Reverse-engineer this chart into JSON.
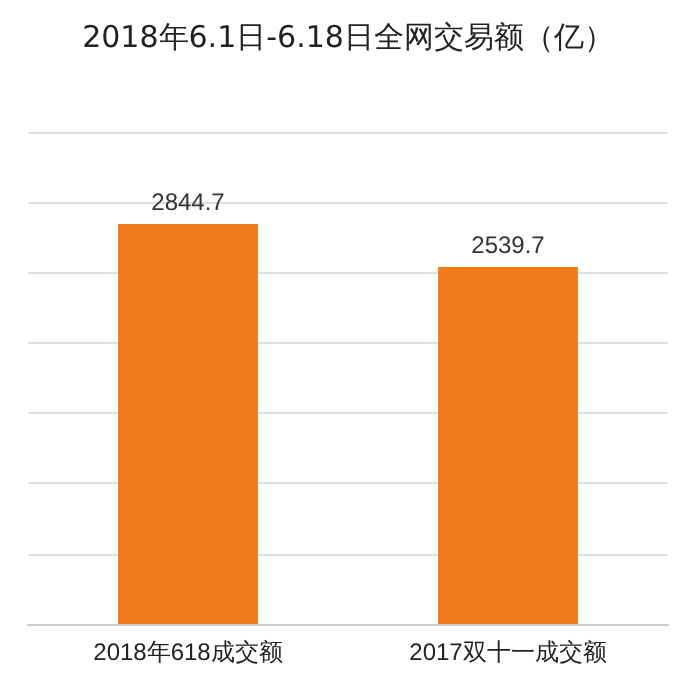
{
  "chart_data": {
    "type": "bar",
    "title": "2018年6.1日-6.18日全网交易额（亿）",
    "categories": [
      "2018年618成交额",
      "2017双十一成交额"
    ],
    "values": [
      2844.7,
      2539.7
    ],
    "color": "#f07c1c",
    "ylim": [
      0,
      3500
    ],
    "yticks": [
      {
        "value": 0,
        "label": null
      },
      {
        "value": 500,
        "label": null
      },
      {
        "value": 1000,
        "label": null
      },
      {
        "value": 1500,
        "label": null
      },
      {
        "value": 2000,
        "label": null
      },
      {
        "value": 2500,
        "label": null
      },
      {
        "value": 3000,
        "label": null
      },
      {
        "value": 3500,
        "label": null
      }
    ],
    "grid": "y",
    "tick_labels": "x",
    "data_labels": true
  }
}
